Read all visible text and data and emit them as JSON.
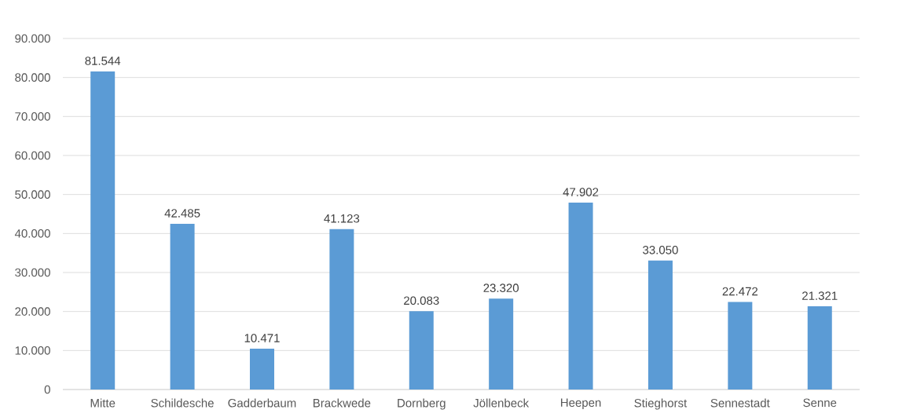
{
  "chart_data": {
    "type": "bar",
    "categories": [
      "Mitte",
      "Schildesche",
      "Gadderbaum",
      "Brackwede",
      "Dornberg",
      "Jöllenbeck",
      "Heepen",
      "Stieghorst",
      "Sennestadt",
      "Senne"
    ],
    "values": [
      81544,
      42485,
      10471,
      41123,
      20083,
      23320,
      47902,
      33050,
      22472,
      21321
    ],
    "value_labels": [
      "81.544",
      "42.485",
      "10.471",
      "41.123",
      "20.083",
      "23.320",
      "47.902",
      "33.050",
      "22.472",
      "21.321"
    ],
    "color": "#5b9bd5",
    "ylim": [
      0,
      90000
    ],
    "yticks": [
      0,
      {
        "value": 10000,
        "label": "10.000"
      },
      {
        "value": 20000,
        "label": "20.000"
      },
      {
        "value": 30000,
        "label": "30.000"
      },
      {
        "value": 40000,
        "label": "40.000"
      },
      {
        "value": 50000,
        "label": "50.000"
      },
      {
        "value": 60000,
        "label": "60.000"
      },
      {
        "value": 70000,
        "label": "70.000"
      },
      {
        "value": 80000,
        "label": "80.000"
      },
      {
        "value": 90000,
        "label": "90.000"
      }
    ],
    "grid": "y"
  }
}
